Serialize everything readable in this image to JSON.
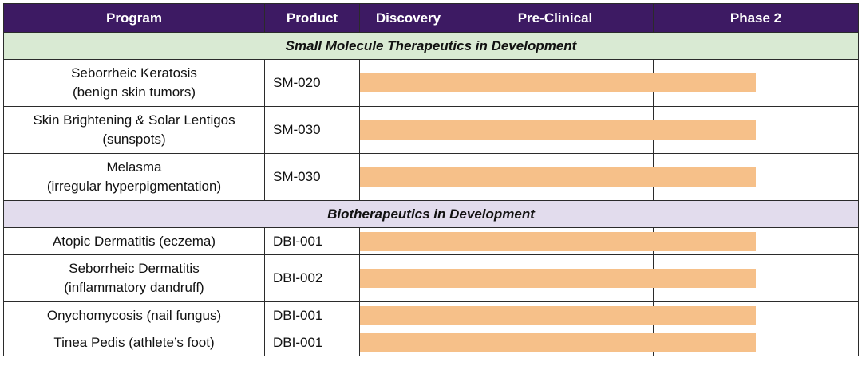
{
  "table": {
    "columns": [
      "Program",
      "Product",
      "Discovery",
      "Pre-Clinical",
      "",
      "Phase 2"
    ],
    "sections": [
      {
        "title": "Small Molecule Therapeutics in Development",
        "color": "#d9ead3",
        "rows": [
          {
            "program_line1": "Seborrheic Keratosis",
            "program_line2": "(benign skin tumors)",
            "product": "SM-020",
            "progress_stage": "Phase 2"
          },
          {
            "program_line1": "Skin Brightening & Solar Lentigos",
            "program_line2": "(sunspots)",
            "product": "SM-030",
            "progress_stage": "Phase 2"
          },
          {
            "program_line1": "Melasma",
            "program_line2": "(irregular hyperpigmentation)",
            "product": "SM-030",
            "progress_stage": "Phase 2"
          }
        ]
      },
      {
        "title": "Biotherapeutics in Development",
        "color": "#e2dced",
        "rows": [
          {
            "program_line1": "Atopic Dermatitis (eczema)",
            "program_line2": "",
            "product": "DBI-001",
            "progress_stage": "Phase 2"
          },
          {
            "program_line1": "Seborrheic Dermatitis",
            "program_line2": "(inflammatory dandruff)",
            "product": "DBI-002",
            "progress_stage": "Phase 2"
          },
          {
            "program_line1": "Onychomycosis (nail fungus)",
            "program_line2": "",
            "product": "DBI-001",
            "progress_stage": "Phase 2"
          },
          {
            "program_line1": "Tinea Pedis (athlete’s foot)",
            "program_line2": "",
            "product": "DBI-001",
            "progress_stage": "Phase 2"
          }
        ]
      }
    ]
  },
  "colors": {
    "header_bg": "#3d1a63",
    "bar": "#f6c089"
  }
}
